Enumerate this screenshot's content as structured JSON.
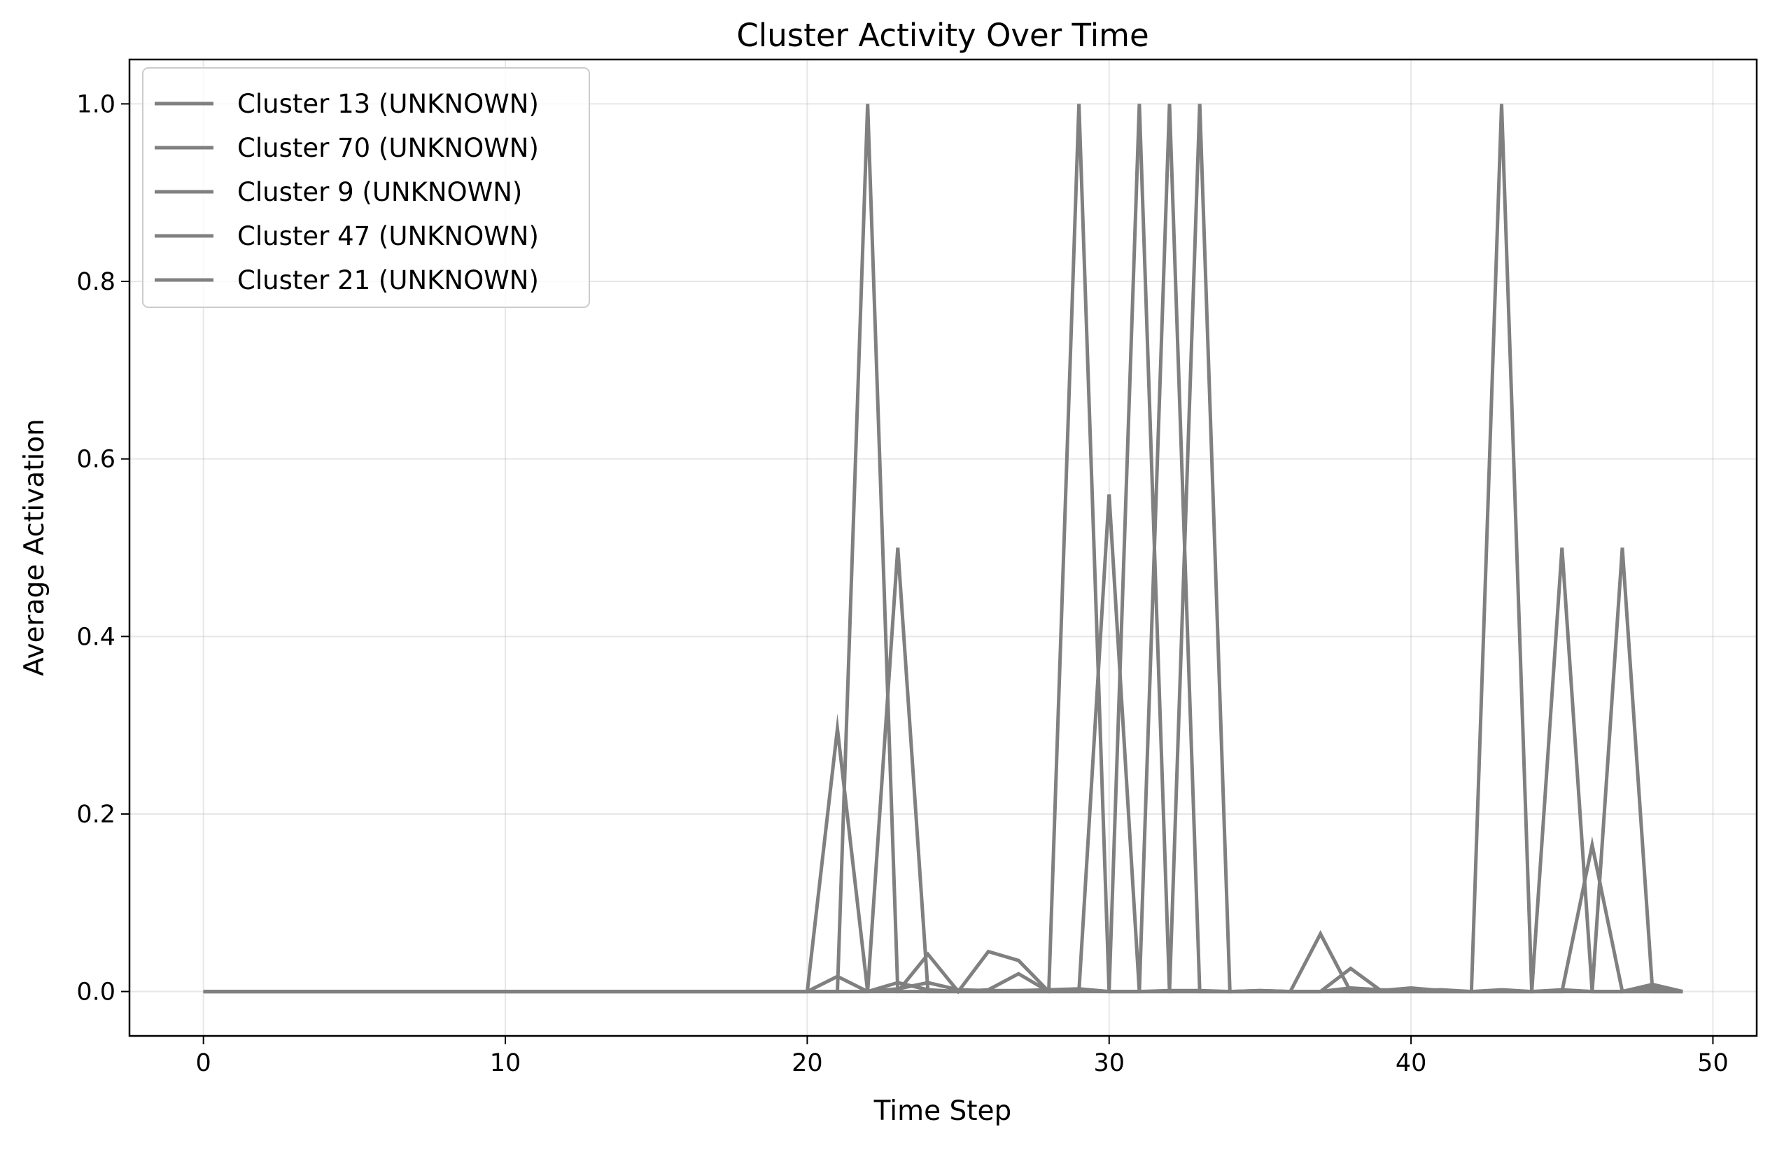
{
  "chart_data": {
    "type": "line",
    "title": "Cluster Activity Over Time",
    "xlabel": "Time Step",
    "ylabel": "Average Activation",
    "xlim": [
      -2.45,
      51.45
    ],
    "ylim": [
      -0.05,
      1.05
    ],
    "xticks": [
      0,
      10,
      20,
      30,
      40,
      50
    ],
    "yticks": [
      0.0,
      0.2,
      0.4,
      0.6,
      0.8,
      1.0
    ],
    "xtick_labels": [
      "0",
      "10",
      "20",
      "30",
      "40",
      "50"
    ],
    "ytick_labels": [
      "0.0",
      "0.2",
      "0.4",
      "0.6",
      "0.8",
      "1.0"
    ],
    "grid": true,
    "legend_position": "upper-left",
    "line_color": "#808080",
    "x": [
      0,
      1,
      2,
      3,
      4,
      5,
      6,
      7,
      8,
      9,
      10,
      11,
      12,
      13,
      14,
      15,
      16,
      17,
      18,
      19,
      20,
      21,
      22,
      23,
      24,
      25,
      26,
      27,
      28,
      29,
      30,
      31,
      32,
      33,
      34,
      35,
      36,
      37,
      38,
      39,
      40,
      41,
      42,
      43,
      44,
      45,
      46,
      47,
      48,
      49
    ],
    "series": [
      {
        "name": "Cluster 13 (UNKNOWN)",
        "values": [
          0,
          0,
          0,
          0,
          0,
          0,
          0,
          0,
          0,
          0,
          0,
          0,
          0,
          0,
          0,
          0,
          0,
          0,
          0,
          0,
          0,
          0,
          1.0,
          0,
          0,
          0,
          0,
          0,
          0,
          1.0,
          0,
          0,
          0,
          1.0,
          0,
          0,
          0,
          0,
          0,
          0,
          0,
          0,
          0,
          1.0,
          0,
          0,
          0,
          0,
          0,
          0
        ]
      },
      {
        "name": "Cluster 70 (UNKNOWN)",
        "values": [
          0,
          0,
          0,
          0,
          0,
          0,
          0,
          0,
          0,
          0,
          0,
          0,
          0,
          0,
          0,
          0,
          0,
          0,
          0,
          0,
          0,
          0.296,
          0,
          0.5,
          0,
          0,
          0,
          0,
          0,
          0,
          0,
          1.0,
          0,
          0,
          0,
          0,
          0,
          0,
          0,
          0,
          0,
          0,
          0,
          0,
          0,
          0.5,
          0,
          0.5,
          0,
          0
        ]
      },
      {
        "name": "Cluster 9 (UNKNOWN)",
        "values": [
          0,
          0,
          0,
          0,
          0,
          0,
          0,
          0,
          0,
          0,
          0,
          0,
          0,
          0,
          0,
          0,
          0,
          0,
          0,
          0,
          0,
          0,
          0,
          0,
          0.042,
          0,
          0.045,
          0.035,
          0,
          0,
          0.56,
          0,
          1.0,
          0,
          0,
          0,
          0,
          0.065,
          0,
          0,
          0,
          0,
          0,
          0,
          0,
          0,
          0.165,
          0,
          0,
          0
        ]
      },
      {
        "name": "Cluster 47 (UNKNOWN)",
        "values": [
          0,
          0,
          0,
          0,
          0,
          0,
          0,
          0,
          0,
          0,
          0,
          0,
          0,
          0,
          0,
          0,
          0,
          0,
          0,
          0,
          0,
          0.017,
          0,
          0.01,
          0.002,
          0,
          0.002,
          0.02,
          0,
          0.001,
          0,
          0,
          0,
          0,
          0,
          0.001,
          0,
          0,
          0.026,
          0.001,
          0.004,
          0.001,
          0,
          0,
          0,
          0.002,
          0,
          0,
          0.008,
          0
        ]
      },
      {
        "name": "Cluster 21 (UNKNOWN)",
        "values": [
          0,
          0,
          0,
          0,
          0,
          0,
          0,
          0,
          0,
          0,
          0,
          0,
          0,
          0,
          0,
          0,
          0,
          0,
          0,
          0,
          0,
          0,
          0,
          0.003,
          0.01,
          0.002,
          0.001,
          0.001,
          0.002,
          0.003,
          0,
          0,
          0.001,
          0.001,
          0,
          0.001,
          0,
          0,
          0.004,
          0.002,
          0.001,
          0.002,
          0,
          0.002,
          0,
          0.001,
          0,
          0,
          0.004,
          0
        ]
      }
    ]
  }
}
